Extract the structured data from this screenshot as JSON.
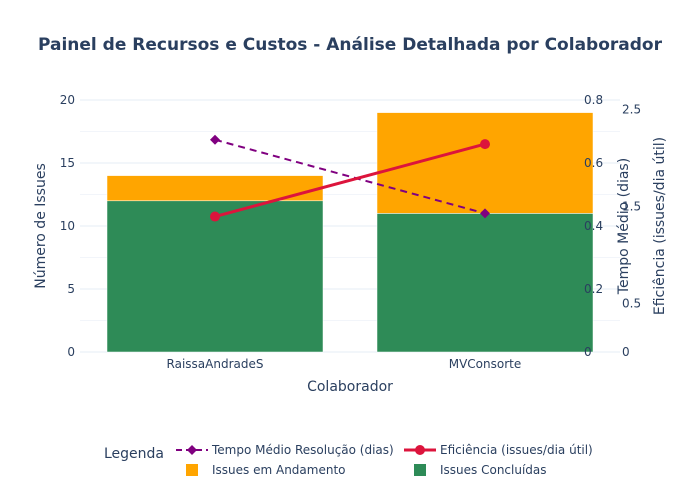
{
  "chart_data": {
    "type": "bar",
    "title": "Painel de Recursos e Custos - Análise Detalhada por Colaborador",
    "xlabel": "Colaborador",
    "ylabel": "Número de Issues",
    "y2label": "Tempo Médio (dias)",
    "y3label": "Eficiência (issues/dia útil)",
    "categories": [
      "RaissaAndradeS",
      "MVConsorte"
    ],
    "ylim": [
      0,
      20
    ],
    "y_ticks": [
      "0",
      "5",
      "10",
      "15",
      "20"
    ],
    "y2lim": [
      0,
      2.6
    ],
    "y2_ticks": [
      "0",
      "0.5",
      "1.5",
      "2.5"
    ],
    "y3lim": [
      0,
      0.8
    ],
    "y3_ticks": [
      "0",
      "0.2",
      "0.4",
      "0.6",
      "0.8"
    ],
    "bar_mode": "stack",
    "series": [
      {
        "name": "Issues Concluídas",
        "kind": "bar",
        "axis": "y",
        "color": "#2e8b57",
        "values": [
          12,
          11
        ]
      },
      {
        "name": "Issues em Andamento",
        "kind": "bar",
        "axis": "y",
        "color": "#ffa500",
        "values": [
          2,
          8
        ]
      },
      {
        "name": "Tempo Médio Resolução (dias)",
        "kind": "line",
        "axis": "y2",
        "color": "#800080",
        "dash": "dashed",
        "marker": "diamond",
        "values": [
          2.19,
          1.43
        ]
      },
      {
        "name": "Eficiência (issues/dia útil)",
        "kind": "line",
        "axis": "y3",
        "color": "#dc143c",
        "dash": "solid",
        "marker": "circle",
        "values": [
          0.43,
          0.66
        ]
      }
    ],
    "legend": {
      "title": "Legenda",
      "position": "bottom",
      "order": [
        "Tempo Médio Resolução (dias)",
        "Eficiência (issues/dia útil)",
        "Issues em Andamento",
        "Issues Concluídas"
      ]
    },
    "grid": true
  }
}
